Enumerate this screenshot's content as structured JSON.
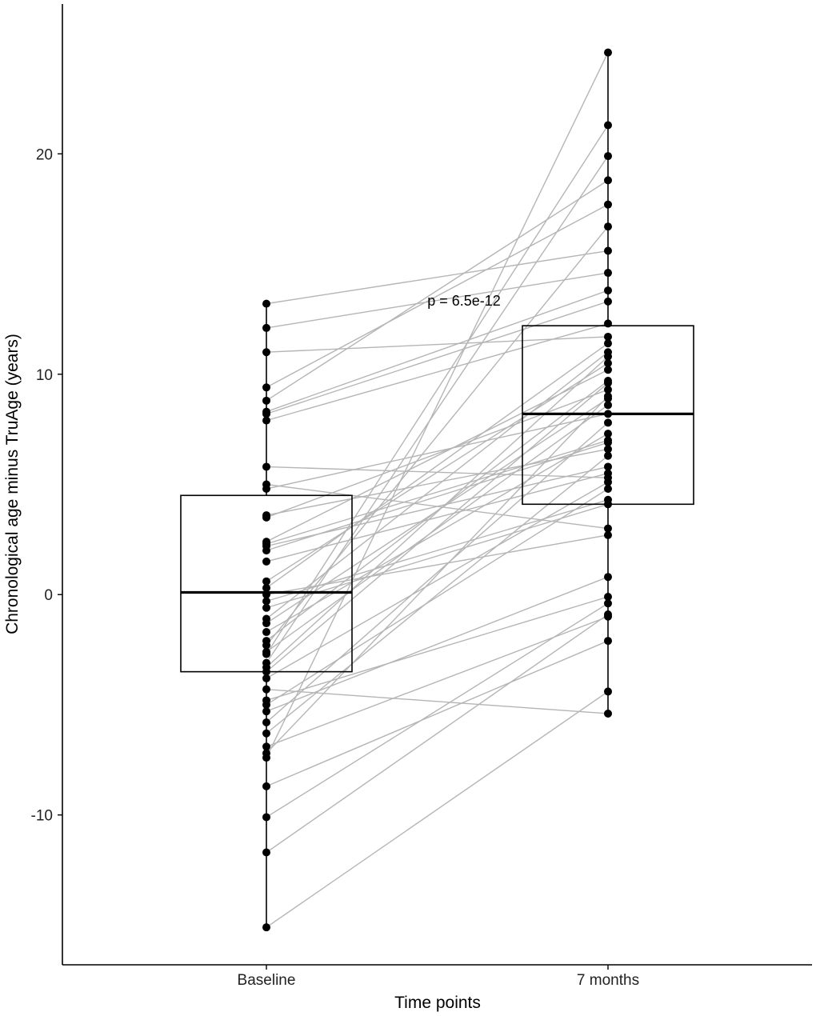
{
  "chart_data": {
    "type": "box",
    "title": "",
    "xlabel": "Time points",
    "ylabel": "Chronological age minus TruAge (years)",
    "ylim": [
      -16.8,
      26.8
    ],
    "yticks": [
      -10,
      0,
      10,
      20
    ],
    "ytick_labels": [
      "-10",
      "0",
      "10",
      "20"
    ],
    "categories": [
      "Baseline",
      "7 months"
    ],
    "annotation": "p = 6.5e-12",
    "grid": false,
    "boxes": [
      {
        "category": "Baseline",
        "q1": -3.5,
        "median": 0.1,
        "q3": 4.5,
        "whisker_low": -15.1,
        "whisker_high": 13.2
      },
      {
        "category": "7 months",
        "q1": 4.1,
        "median": 8.2,
        "q3": 12.2,
        "whisker_low": -5.4,
        "whisker_high": 24.6
      }
    ],
    "pairs": [
      [
        13.2,
        15.6
      ],
      [
        12.1,
        14.6
      ],
      [
        11.0,
        11.7
      ],
      [
        9.4,
        17.7
      ],
      [
        8.8,
        18.8
      ],
      [
        8.3,
        13.8
      ],
      [
        8.2,
        13.3
      ],
      [
        7.9,
        12.3
      ],
      [
        5.8,
        5.3
      ],
      [
        5.0,
        3.0
      ],
      [
        4.8,
        8.2
      ],
      [
        3.6,
        6.6
      ],
      [
        3.5,
        9.3
      ],
      [
        2.4,
        10.2
      ],
      [
        2.3,
        7.0
      ],
      [
        2.2,
        5.8
      ],
      [
        2.0,
        6.9
      ],
      [
        1.5,
        5.5
      ],
      [
        0.6,
        10.5
      ],
      [
        0.3,
        11.4
      ],
      [
        0.0,
        2.7
      ],
      [
        -0.3,
        4.3
      ],
      [
        -1.1,
        11.0
      ],
      [
        -1.3,
        8.9
      ],
      [
        -2.1,
        9.7
      ],
      [
        -2.3,
        16.7
      ],
      [
        -2.7,
        21.3
      ],
      [
        -3.1,
        19.9
      ],
      [
        -3.3,
        10.8
      ],
      [
        -3.5,
        9.6
      ],
      [
        -5.0,
        4.8
      ],
      [
        -5.3,
        0.8
      ],
      [
        -5.8,
        7.8
      ],
      [
        -6.3,
        6.3
      ],
      [
        -7.2,
        9.0
      ],
      [
        -7.4,
        24.6
      ],
      [
        -10.1,
        -0.4
      ],
      [
        -11.7,
        -0.9
      ],
      [
        -15.1,
        -4.4
      ],
      [
        -2.6,
        8.6
      ],
      [
        -4.8,
        -0.1
      ],
      [
        -0.6,
        4.1
      ],
      [
        -6.9,
        -1.0
      ],
      [
        -8.7,
        -2.1
      ],
      [
        -3.8,
        5.1
      ],
      [
        -1.7,
        7.3
      ],
      [
        -4.3,
        -5.4
      ]
    ]
  },
  "colors": {
    "points": "#000000",
    "pair_lines": "#b5b5b5",
    "box_stroke": "#000000",
    "axis": "#000000"
  }
}
